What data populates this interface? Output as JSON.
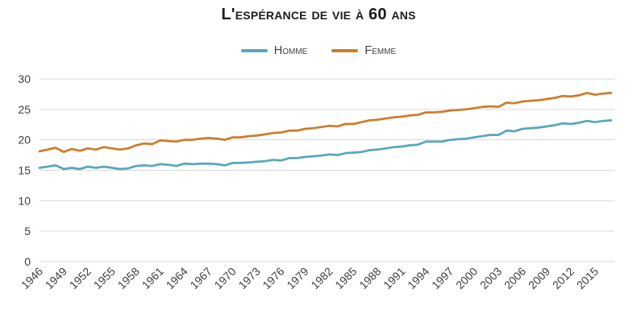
{
  "header": {
    "title": "L'espérance de vie à 60 ans"
  },
  "legend": [
    {
      "label": "Homme",
      "color": "#58A7BD"
    },
    {
      "label": "Femme",
      "color": "#CC7D2B"
    }
  ],
  "chart_data": {
    "type": "line",
    "title": "L'espérance de vie à 60 ans",
    "xlabel": "",
    "ylabel": "",
    "ylim": [
      0,
      30
    ],
    "yticks": [
      0,
      5,
      10,
      15,
      20,
      25,
      30
    ],
    "grid": true,
    "gridline_color": "#d9d9d9",
    "axis_text_color": "#3f3f3f",
    "legend_position": "top",
    "x": [
      1946,
      1947,
      1948,
      1949,
      1950,
      1951,
      1952,
      1953,
      1954,
      1955,
      1956,
      1957,
      1958,
      1959,
      1960,
      1961,
      1962,
      1963,
      1964,
      1965,
      1966,
      1967,
      1968,
      1969,
      1970,
      1971,
      1972,
      1973,
      1974,
      1975,
      1976,
      1977,
      1978,
      1979,
      1980,
      1981,
      1982,
      1983,
      1984,
      1985,
      1986,
      1987,
      1988,
      1989,
      1990,
      1991,
      1992,
      1993,
      1994,
      1995,
      1996,
      1997,
      1998,
      1999,
      2000,
      2001,
      2002,
      2003,
      2004,
      2005,
      2006,
      2007,
      2008,
      2009,
      2010,
      2011,
      2012,
      2013,
      2014,
      2015,
      2016,
      2017
    ],
    "xtick_labels": [
      "1946",
      "1949",
      "1952",
      "1955",
      "1958",
      "1961",
      "1964",
      "1967",
      "1970",
      "1973",
      "1976",
      "1979",
      "1982",
      "1985",
      "1988",
      "1991",
      "1994",
      "1997",
      "2000",
      "2003",
      "2006",
      "2009",
      "2012",
      "2015"
    ],
    "series": [
      {
        "name": "Homme",
        "color": "#58A7BD",
        "values": [
          15.4,
          15.6,
          15.8,
          15.2,
          15.4,
          15.2,
          15.6,
          15.4,
          15.6,
          15.4,
          15.2,
          15.3,
          15.7,
          15.8,
          15.7,
          16.0,
          15.9,
          15.7,
          16.1,
          16.0,
          16.1,
          16.1,
          16.0,
          15.8,
          16.2,
          16.2,
          16.3,
          16.4,
          16.5,
          16.7,
          16.6,
          17.0,
          17.0,
          17.2,
          17.3,
          17.4,
          17.6,
          17.5,
          17.8,
          17.9,
          18.0,
          18.3,
          18.4,
          18.6,
          18.8,
          18.9,
          19.1,
          19.2,
          19.7,
          19.7,
          19.7,
          20.0,
          20.1,
          20.2,
          20.4,
          20.6,
          20.8,
          20.8,
          21.5,
          21.4,
          21.8,
          21.9,
          22.0,
          22.2,
          22.4,
          22.7,
          22.6,
          22.8,
          23.1,
          22.9,
          23.1,
          23.2
        ]
      },
      {
        "name": "Femme",
        "color": "#CC7D2B",
        "values": [
          18.1,
          18.4,
          18.7,
          18.0,
          18.5,
          18.2,
          18.6,
          18.4,
          18.8,
          18.6,
          18.4,
          18.6,
          19.1,
          19.4,
          19.3,
          19.9,
          19.8,
          19.7,
          20.0,
          20.0,
          20.2,
          20.3,
          20.2,
          20.0,
          20.4,
          20.4,
          20.6,
          20.7,
          20.9,
          21.1,
          21.2,
          21.5,
          21.5,
          21.8,
          21.9,
          22.1,
          22.3,
          22.2,
          22.6,
          22.6,
          22.9,
          23.2,
          23.3,
          23.5,
          23.7,
          23.8,
          24.0,
          24.1,
          24.5,
          24.5,
          24.6,
          24.8,
          24.9,
          25.0,
          25.2,
          25.4,
          25.5,
          25.4,
          26.1,
          26.0,
          26.3,
          26.4,
          26.5,
          26.7,
          26.9,
          27.2,
          27.1,
          27.3,
          27.7,
          27.4,
          27.6,
          27.7
        ]
      }
    ]
  }
}
